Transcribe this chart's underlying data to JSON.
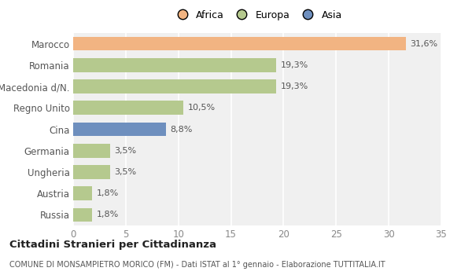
{
  "categories": [
    "Russia",
    "Austria",
    "Ungheria",
    "Germania",
    "Cina",
    "Regno Unito",
    "Macedonia d/N.",
    "Romania",
    "Marocco"
  ],
  "values": [
    1.8,
    1.8,
    3.5,
    3.5,
    8.8,
    10.5,
    19.3,
    19.3,
    31.6
  ],
  "labels": [
    "1,8%",
    "1,8%",
    "3,5%",
    "3,5%",
    "8,8%",
    "10,5%",
    "19,3%",
    "19,3%",
    "31,6%"
  ],
  "colors": [
    "#b5c98e",
    "#b5c98e",
    "#b5c98e",
    "#b5c98e",
    "#6e8fbe",
    "#b5c98e",
    "#b5c98e",
    "#b5c98e",
    "#f2b482"
  ],
  "legend": [
    {
      "label": "Africa",
      "color": "#f2b482"
    },
    {
      "label": "Europa",
      "color": "#b5c98e"
    },
    {
      "label": "Asia",
      "color": "#6e8fbe"
    }
  ],
  "xlim": [
    0,
    35
  ],
  "xticks": [
    0,
    5,
    10,
    15,
    20,
    25,
    30,
    35
  ],
  "title": "Cittadini Stranieri per Cittadinanza",
  "subtitle": "COMUNE DI MONSAMPIETRO MORICO (FM) - Dati ISTAT al 1° gennaio - Elaborazione TUTTITALIA.IT",
  "bg_color": "#ffffff",
  "plot_bg_color": "#f0f0f0",
  "grid_color": "#ffffff",
  "bar_height": 0.65
}
